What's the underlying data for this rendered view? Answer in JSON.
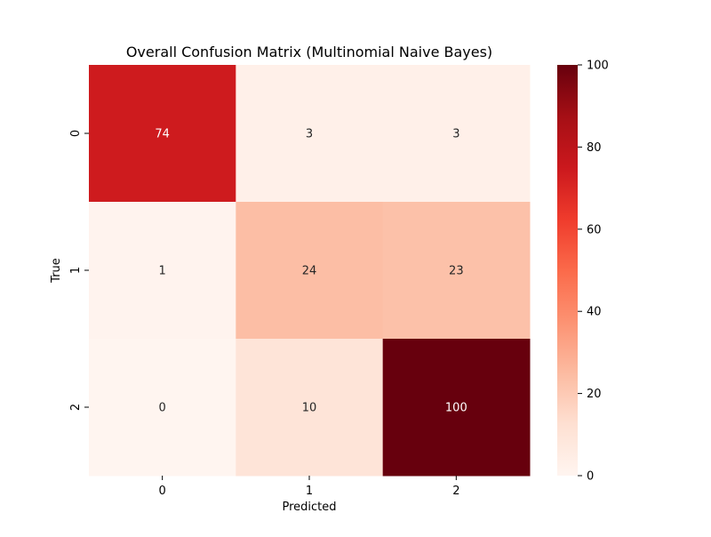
{
  "chart_data": {
    "type": "heatmap",
    "title": "Overall Confusion Matrix (Multinomial Naive Bayes)",
    "xlabel": "Predicted",
    "ylabel": "True",
    "x_categories": [
      "0",
      "1",
      "2"
    ],
    "y_categories": [
      "0",
      "1",
      "2"
    ],
    "values": [
      [
        74,
        3,
        3
      ],
      [
        1,
        24,
        23
      ],
      [
        0,
        10,
        100
      ]
    ],
    "colormap": "Reds",
    "vmin": 0,
    "vmax": 100,
    "colorbar_ticks": [
      0,
      20,
      40,
      60,
      80,
      100
    ],
    "annotation_colors": {
      "light": "#ffffff",
      "dark": "#262626"
    }
  }
}
